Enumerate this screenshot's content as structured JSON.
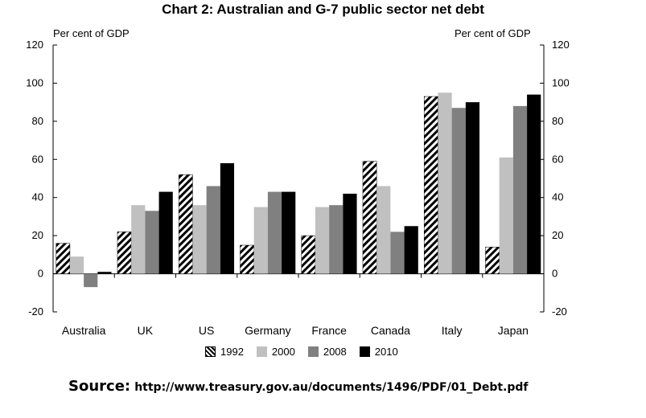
{
  "chart_data": {
    "type": "bar",
    "title": "Chart 2: Australian and G-7 public sector net debt",
    "ylabel_left": "Per cent of GDP",
    "ylabel_right": "Per cent of GDP",
    "ylim": [
      -20,
      120
    ],
    "y_ticks": [
      "-20",
      "0",
      "20",
      "40",
      "60",
      "80",
      "100",
      "120"
    ],
    "categories": [
      "Australia",
      "UK",
      "US",
      "Germany",
      "France",
      "Canada",
      "Italy",
      "Japan"
    ],
    "series": [
      {
        "name": "1992",
        "color": "#ffffff",
        "pattern": "hatched",
        "values": [
          16,
          22,
          52,
          15,
          20,
          59,
          93,
          14
        ]
      },
      {
        "name": "2000",
        "color": "#c0c0c0",
        "values": [
          9,
          36,
          36,
          35,
          35,
          46,
          95,
          61
        ]
      },
      {
        "name": "2008",
        "color": "#808080",
        "values": [
          -7,
          33,
          46,
          43,
          36,
          22,
          87,
          88
        ]
      },
      {
        "name": "2010",
        "color": "#000000",
        "values": [
          1,
          43,
          58,
          43,
          42,
          25,
          90,
          94
        ]
      }
    ],
    "grid": false,
    "legend_position": "bottom"
  },
  "source": {
    "label": "Source:",
    "url": "http://www.treasury.gov.au/documents/1496/PDF/01_Debt.pdf"
  }
}
